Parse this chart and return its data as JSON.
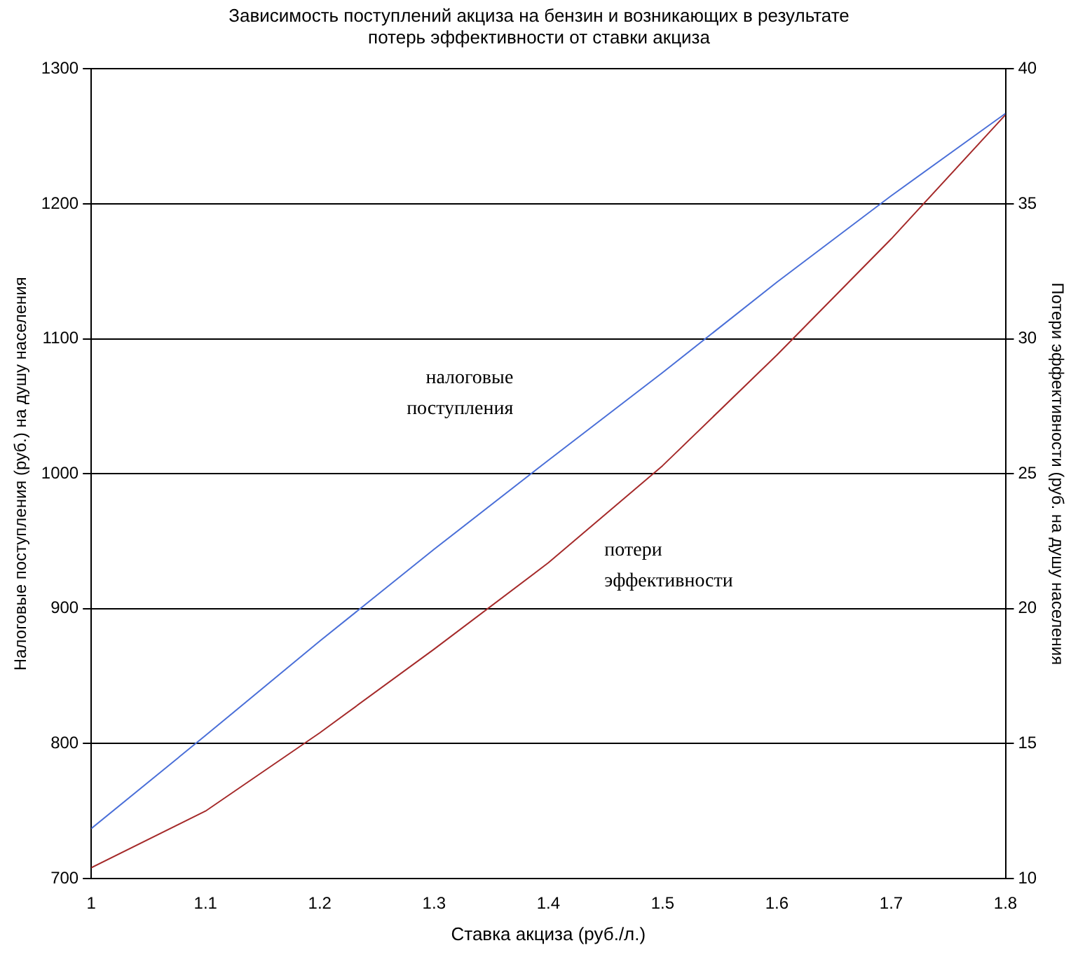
{
  "chart_data": {
    "type": "line",
    "title": "Зависимость поступлений акциза на бензин и возникающих в результате потерь эффективности от ставки акциза",
    "xlabel": "Ставка акциза (руб./л.)",
    "ylabel": "Налоговые поступления (руб.) на душу населения",
    "y2label": "Потери эффективности (руб. на душу населения",
    "x": [
      1,
      1.1,
      1.2,
      1.3,
      1.4,
      1.5,
      1.6,
      1.7,
      1.8
    ],
    "series": [
      {
        "name": "налоговые\nпоступления",
        "color": "#4a6fd8",
        "values": [
          737,
          806,
          876,
          944,
          1010,
          1075,
          1142,
          1206,
          1267
        ]
      },
      {
        "name": "потери\nэффективности",
        "color": "#a52a2a",
        "axis": "y2",
        "values": [
          10.4,
          12.5,
          15.4,
          18.5,
          21.7,
          25.3,
          29.4,
          33.7,
          38.3
        ]
      }
    ],
    "xlim": [
      1,
      1.8
    ],
    "xticks": [
      1,
      1.1,
      1.2,
      1.3,
      1.4,
      1.5,
      1.6,
      1.7,
      1.8
    ],
    "ylim": [
      700,
      1300
    ],
    "yticks": [
      700,
      800,
      900,
      1000,
      1100,
      1200,
      1300
    ],
    "y2lim": [
      10,
      40
    ],
    "y2ticks": [
      10,
      15,
      20,
      25,
      30,
      35,
      40
    ],
    "grid": "y",
    "legend": false,
    "marker": "none",
    "line_style": "solid"
  }
}
